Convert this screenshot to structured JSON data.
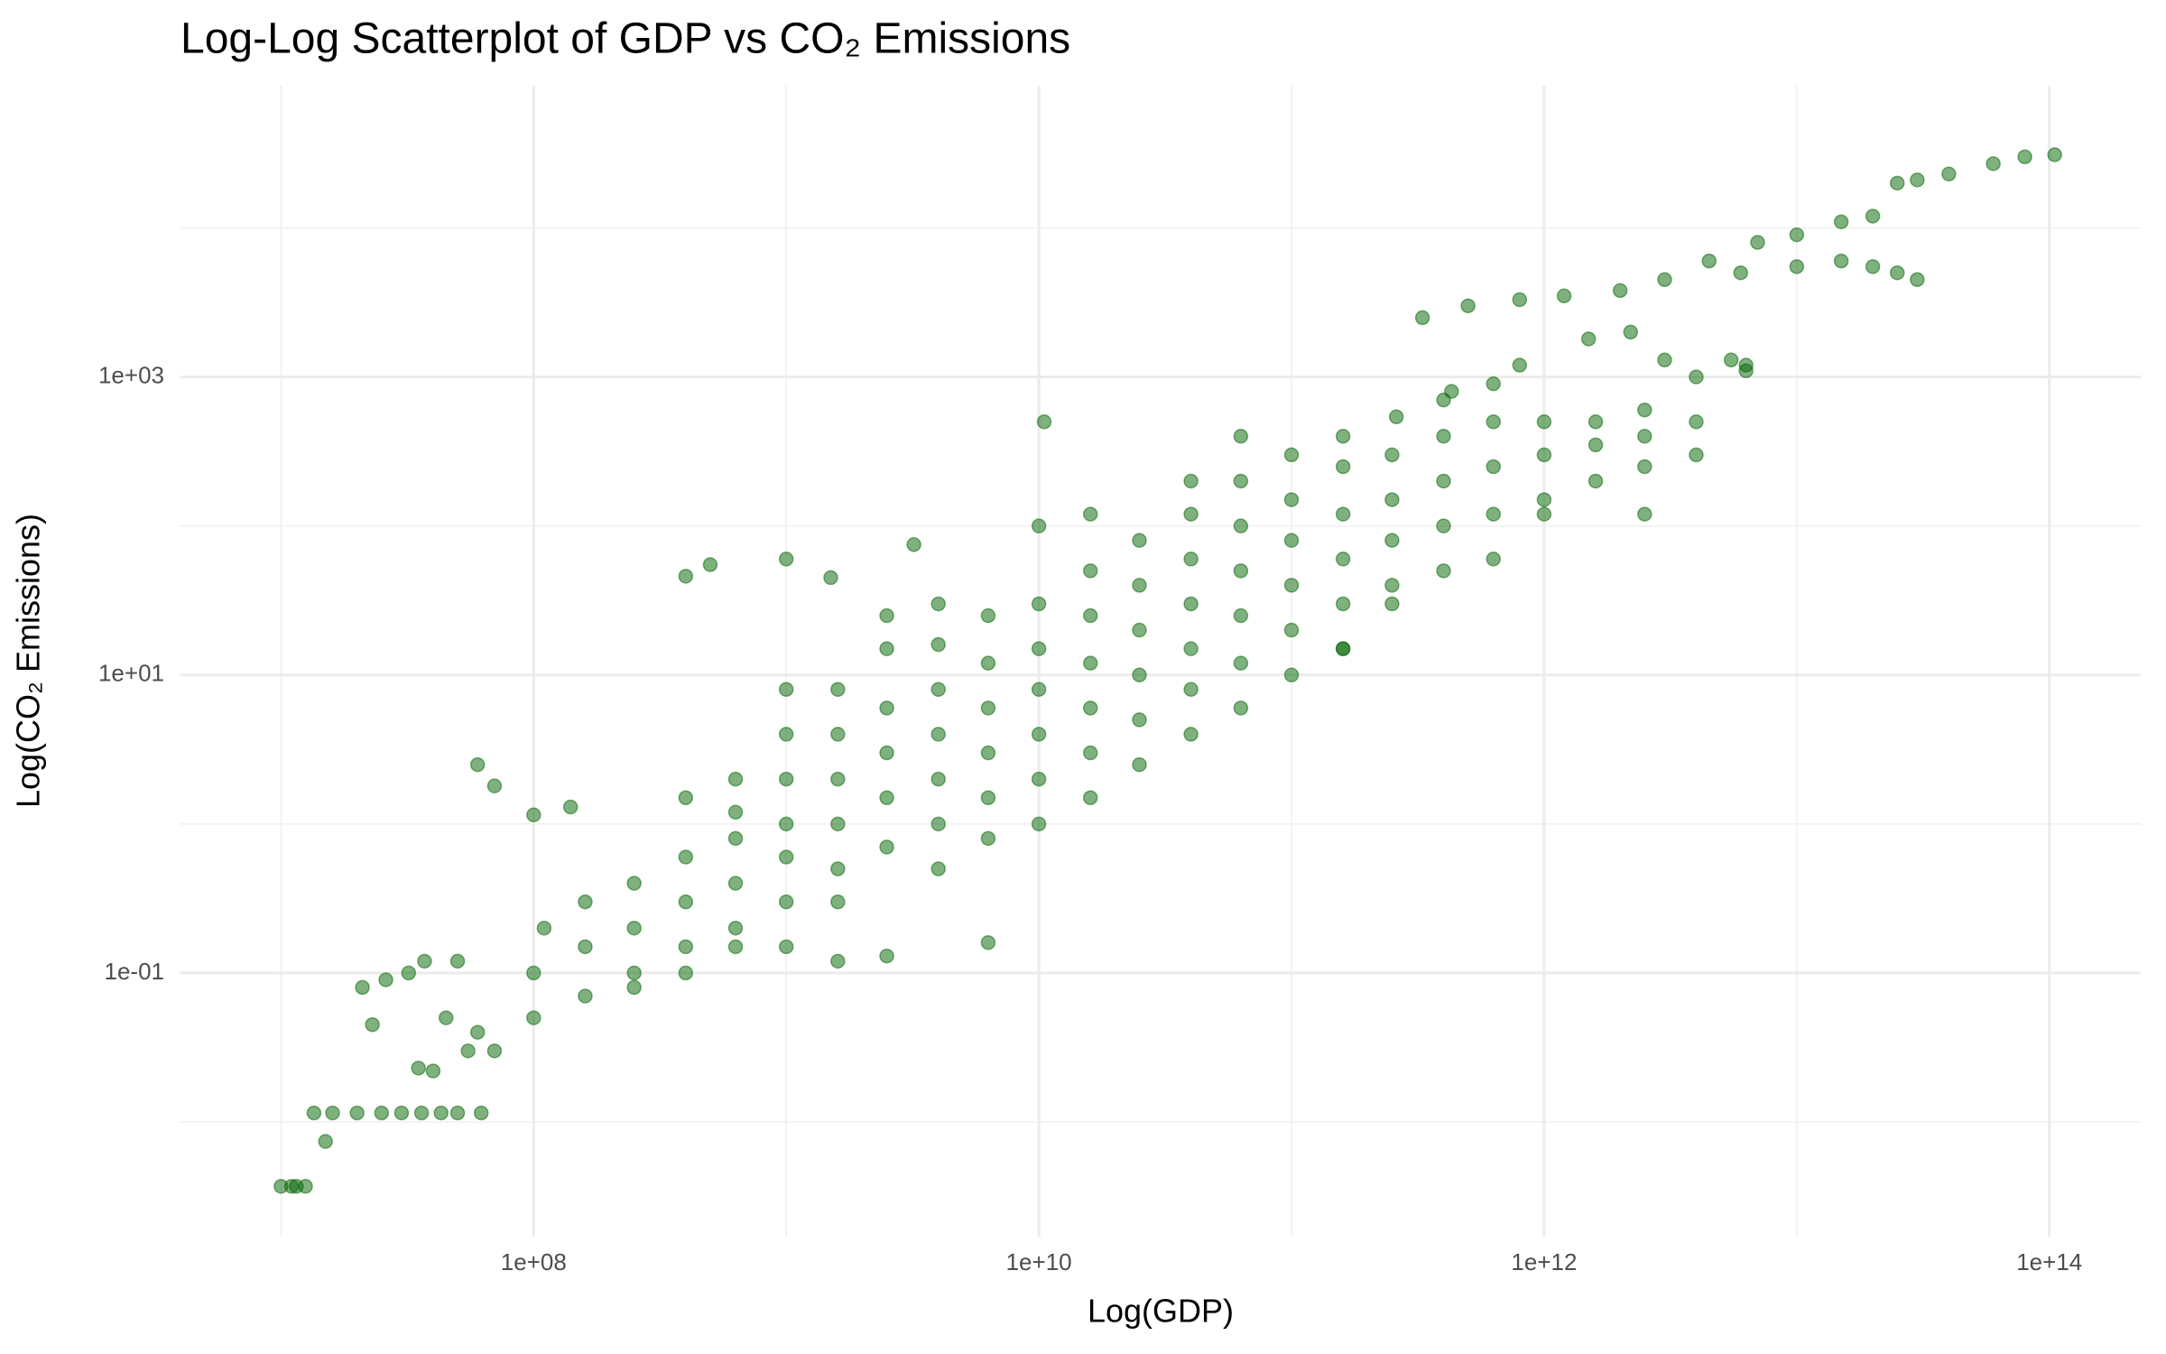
{
  "chart_data": {
    "type": "scatter",
    "title": "Log-Log Scatterplot of GDP vs CO₂ Emissions",
    "xlabel": "Log(GDP)",
    "ylabel": "Log(CO₂ Emissions)",
    "color": "#006400",
    "alpha": 0.5,
    "log_x": true,
    "log_y": true,
    "grid": true,
    "xlim": [
      4000000,
      230000000000000
    ],
    "ylim": [
      0.0017,
      90000
    ],
    "xticks": [
      {
        "value": 100000000,
        "label": "1e+08"
      },
      {
        "value": 10000000000,
        "label": "1e+10"
      },
      {
        "value": 1000000000000,
        "label": "1e+12"
      },
      {
        "value": 100000000000000,
        "label": "1e+14"
      }
    ],
    "yticks": [
      {
        "value": 0.1,
        "label": "1e-01"
      },
      {
        "value": 10,
        "label": "1e+01"
      },
      {
        "value": 1000,
        "label": "1e+03"
      }
    ],
    "xminor": [
      10000000,
      1000000000,
      100000000000,
      10000000000000
    ],
    "yminor": [
      0.01,
      1,
      100,
      10000
    ],
    "x": [
      10000000.0,
      11000000.0,
      11500000.0,
      12500000.0,
      13500000.0,
      16000000.0,
      20000000.0,
      25000000.0,
      30000000.0,
      36000000.0,
      43000000.0,
      50000000.0,
      62000000.0,
      15000000.0,
      21000000.0,
      23000000.0,
      26000000.0,
      32000000.0,
      35000000.0,
      37000000.0,
      40000000.0,
      45000000.0,
      50000000.0,
      55000000.0,
      60000000.0,
      70000000.0,
      100000000.0,
      100000000.0,
      110000000.0,
      160000000.0,
      160000000.0,
      160000000.0,
      250000000.0,
      250000000.0,
      250000000.0,
      250000000.0,
      400000000.0,
      400000000.0,
      400000000.0,
      400000000.0,
      400000000.0,
      630000000.0,
      630000000.0,
      630000000.0,
      630000000.0,
      630000000.0,
      630000000.0,
      1000000000.0,
      1000000000.0,
      1000000000.0,
      1000000000.0,
      1000000000.0,
      1000000000.0,
      1000000000.0,
      1600000000.0,
      1600000000.0,
      1600000000.0,
      1600000000.0,
      1600000000.0,
      1600000000.0,
      1600000000.0,
      2500000000.0,
      2500000000.0,
      2500000000.0,
      2500000000.0,
      2500000000.0,
      2500000000.0,
      2500000000.0,
      4000000000.0,
      4000000000.0,
      4000000000.0,
      4000000000.0,
      4000000000.0,
      4000000000.0,
      4000000000.0,
      6300000000.0,
      6300000000.0,
      6300000000.0,
      6300000000.0,
      6300000000.0,
      6300000000.0,
      6300000000.0,
      10000000000.0,
      10000000000.0,
      10000000000.0,
      10000000000.0,
      10000000000.0,
      10000000000.0,
      10000000000.0,
      16000000000.0,
      16000000000.0,
      16000000000.0,
      16000000000.0,
      16000000000.0,
      16000000000.0,
      16000000000.0,
      25000000000.0,
      25000000000.0,
      25000000000.0,
      25000000000.0,
      25000000000.0,
      25000000000.0,
      40000000000.0,
      40000000000.0,
      40000000000.0,
      40000000000.0,
      40000000000.0,
      40000000000.0,
      40000000000.0,
      63000000000.0,
      63000000000.0,
      63000000000.0,
      63000000000.0,
      63000000000.0,
      63000000000.0,
      63000000000.0,
      100000000000.0,
      100000000000.0,
      100000000000.0,
      100000000000.0,
      100000000000.0,
      100000000000.0,
      160000000000.0,
      160000000000.0,
      160000000000.0,
      160000000000.0,
      160000000000.0,
      160000000000.0,
      250000000000.0,
      250000000000.0,
      250000000000.0,
      250000000000.0,
      250000000000.0,
      400000000000.0,
      400000000000.0,
      400000000000.0,
      400000000000.0,
      400000000000.0,
      630000000000.0,
      630000000000.0,
      630000000000.0,
      630000000000.0,
      630000000000.0,
      1000000000000.0,
      1000000000000.0,
      1000000000000.0,
      1000000000000.0,
      1600000000000.0,
      1600000000000.0,
      1600000000000.0,
      2500000000000.0,
      2500000000000.0,
      2500000000000.0,
      2500000000000.0,
      4000000000000.0,
      4000000000000.0,
      4000000000000.0,
      6300000000000.0,
      6300000000000.0,
      260000000000.0,
      430000000000.0,
      800000000000.0,
      1500000000000.0,
      2200000000000.0,
      3000000000000.0,
      5500000000000.0,
      330000000000.0,
      500000000000.0,
      800000000000.0,
      1200000000000.0,
      2000000000000.0,
      3000000000000.0,
      4500000000000.0,
      7000000000000.0,
      10000000000000.0,
      15000000000000.0,
      20000000000000.0,
      25000000000000.0,
      30000000000000.0,
      40000000000000.0,
      60000000000000.0,
      80000000000000.0,
      105000000000000.0,
      6000000000000.0,
      10000000000000.0,
      15000000000000.0,
      20000000000000.0,
      25000000000000.0,
      30000000000000.0,
      10500000000.0,
      400000000.0,
      500000000.0,
      1000000000.0,
      1500000000.0,
      3200000000.0,
      100000000.0,
      140000000.0,
      160000000000.0,
      70000000.0,
      60000000.0
    ],
    "values": [
      0.0037,
      0.0037,
      0.0037,
      0.0037,
      0.0115,
      0.0115,
      0.0115,
      0.0115,
      0.0115,
      0.0115,
      0.0115,
      0.0115,
      0.0115,
      0.0074,
      0.08,
      0.045,
      0.09,
      0.1,
      0.023,
      0.12,
      0.022,
      0.05,
      0.12,
      0.03,
      0.04,
      0.03,
      0.05,
      0.1,
      0.2,
      0.07,
      0.15,
      0.3,
      0.1,
      0.2,
      0.4,
      0.08,
      0.15,
      0.3,
      0.6,
      1.5,
      0.1,
      0.2,
      0.4,
      0.8,
      2,
      0.15,
      1.2,
      0.3,
      0.6,
      1,
      2,
      4,
      0.15,
      8,
      0.5,
      1,
      2,
      4,
      8,
      0.12,
      0.3,
      0.7,
      1.5,
      3,
      6,
      15,
      0.13,
      25,
      1,
      2,
      4,
      8,
      16,
      0.5,
      30,
      1.5,
      3,
      6,
      12,
      25,
      0.16,
      0.8,
      2,
      4,
      8,
      15,
      30,
      1,
      100,
      3,
      6,
      12,
      25,
      50,
      1.5,
      120,
      5,
      10,
      20,
      40,
      80,
      2.5,
      8,
      15,
      30,
      60,
      120,
      4,
      200,
      12,
      25,
      50,
      100,
      200,
      6,
      400,
      20,
      40,
      80,
      150,
      300,
      10,
      30,
      60,
      120,
      250,
      400,
      15,
      40,
      80,
      150,
      300,
      30,
      50,
      100,
      200,
      400,
      700,
      60,
      120,
      250,
      500,
      900,
      150,
      300,
      500,
      120,
      200,
      350,
      500,
      250,
      400,
      600,
      120,
      300,
      500,
      1000,
      1200,
      1100,
      540,
      800,
      1200,
      1800,
      2000,
      1300,
      1300,
      2500,
      3000,
      3300,
      3500,
      3800,
      4500,
      6000,
      8000,
      9000,
      11000,
      12000,
      20000,
      21000,
      23000,
      27000,
      30000,
      31000,
      5000,
      5500,
      6000,
      5500,
      5000,
      4500,
      500,
      46,
      55,
      60,
      45,
      75,
      1.15,
      1.3,
      15,
      1.8,
      2.5
    ]
  }
}
